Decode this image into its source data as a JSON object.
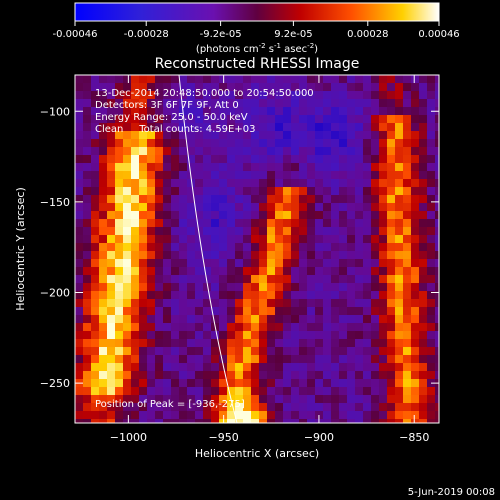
{
  "colorbar": {
    "tick_labels": [
      "-0.00046",
      "-0.00028",
      "-9.2e-05",
      "9.2e-05",
      "0.00028",
      "0.00046"
    ],
    "range": [
      -0.00046,
      0.00046
    ],
    "units_prefix": "(photons cm",
    "units_exp1": "-2",
    "units_mid": " s",
    "units_exp2": "-1",
    "units_mid2": " asec",
    "units_exp3": "-2",
    "units_suffix": ")",
    "colormap": "blue-purple-red-yellow-white"
  },
  "chart_data": {
    "type": "heatmap",
    "title": "Reconstructed RHESSI Image",
    "xlabel": "Heliocentric X (arcsec)",
    "ylabel": "Heliocentric Y (arcsec)",
    "xlim": [
      -1028,
      -837
    ],
    "ylim": [
      -272,
      -80
    ],
    "xticks": [
      -1000,
      -950,
      -900,
      -850
    ],
    "xtick_labels": [
      "−1000",
      "−950",
      "−900",
      "−850"
    ],
    "yticks": [
      -100,
      -150,
      -200,
      -250
    ],
    "ytick_labels": [
      "−100",
      "−150",
      "−200",
      "−250"
    ],
    "peak_position": [
      -936,
      -275
    ],
    "features": [
      {
        "kind": "bright-ridge",
        "x": [
          -1020,
          -985
        ],
        "y": [
          -240,
          -120
        ],
        "level": 0.00046
      },
      {
        "kind": "bright-ridge",
        "x": [
          -945,
          -905
        ],
        "y": [
          -270,
          -140
        ],
        "level": 0.0004
      },
      {
        "kind": "bright-ridge",
        "x": [
          -880,
          -845
        ],
        "y": [
          -230,
          -100
        ],
        "level": 0.00038
      },
      {
        "kind": "negative-lobe",
        "x": [
          -930,
          -880
        ],
        "y": [
          -130,
          -90
        ],
        "level": -0.00046
      }
    ],
    "limb_line": true
  },
  "annotations": {
    "time_range": "13-Dec-2014 20:48:50.000 to 20:54:50.000",
    "detectors": "Detectors: 3F 6F 7F 9F, Att 0",
    "energy": "Energy Range: 25.0 - 50.0 keV",
    "clean": "Clean     Total counts: 4.59E+03",
    "peak": "Position of Peak = [-936,-275]"
  },
  "footer_date": "5-Jun-2019 00:08",
  "colors": {
    "background": "#000000",
    "foreground": "#ffffff"
  }
}
